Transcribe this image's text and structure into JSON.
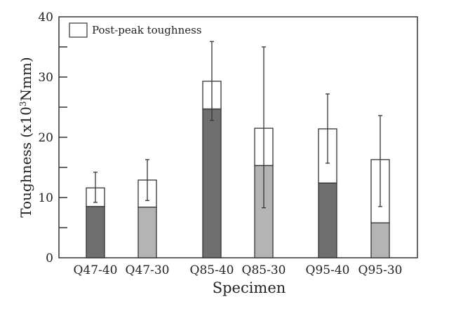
{
  "chart_data": {
    "type": "bar",
    "stacked": true,
    "xlabel": "Specimen",
    "ylabel_main": "Toughness (x10",
    "ylabel_sup": "3",
    "ylabel_end": "Nmm)",
    "ylim": [
      0,
      40
    ],
    "yticks": [
      0,
      10,
      20,
      30,
      40
    ],
    "yminor_step": 5,
    "grid": false,
    "legend": {
      "label": "Post-peak toughness",
      "placement": "top-left"
    },
    "categories": [
      "Q47-40",
      "Q47-30",
      "Q85-40",
      "Q85-30",
      "Q95-40",
      "Q95-30"
    ],
    "pre_peak": [
      8.5,
      8.4,
      24.7,
      15.3,
      12.4,
      5.8
    ],
    "total": [
      11.6,
      12.9,
      29.3,
      21.5,
      21.4,
      16.3
    ],
    "error_low": [
      9.2,
      9.5,
      22.8,
      8.3,
      15.7,
      8.5
    ],
    "error_high": [
      14.2,
      16.3,
      35.9,
      35.0,
      27.2,
      23.6
    ],
    "colors": [
      "#6f6f6f",
      "#b4b4b4",
      "#6f6f6f",
      "#b4b4b4",
      "#6f6f6f",
      "#b4b4b4"
    ],
    "post_peak_color": "#ffffff"
  }
}
